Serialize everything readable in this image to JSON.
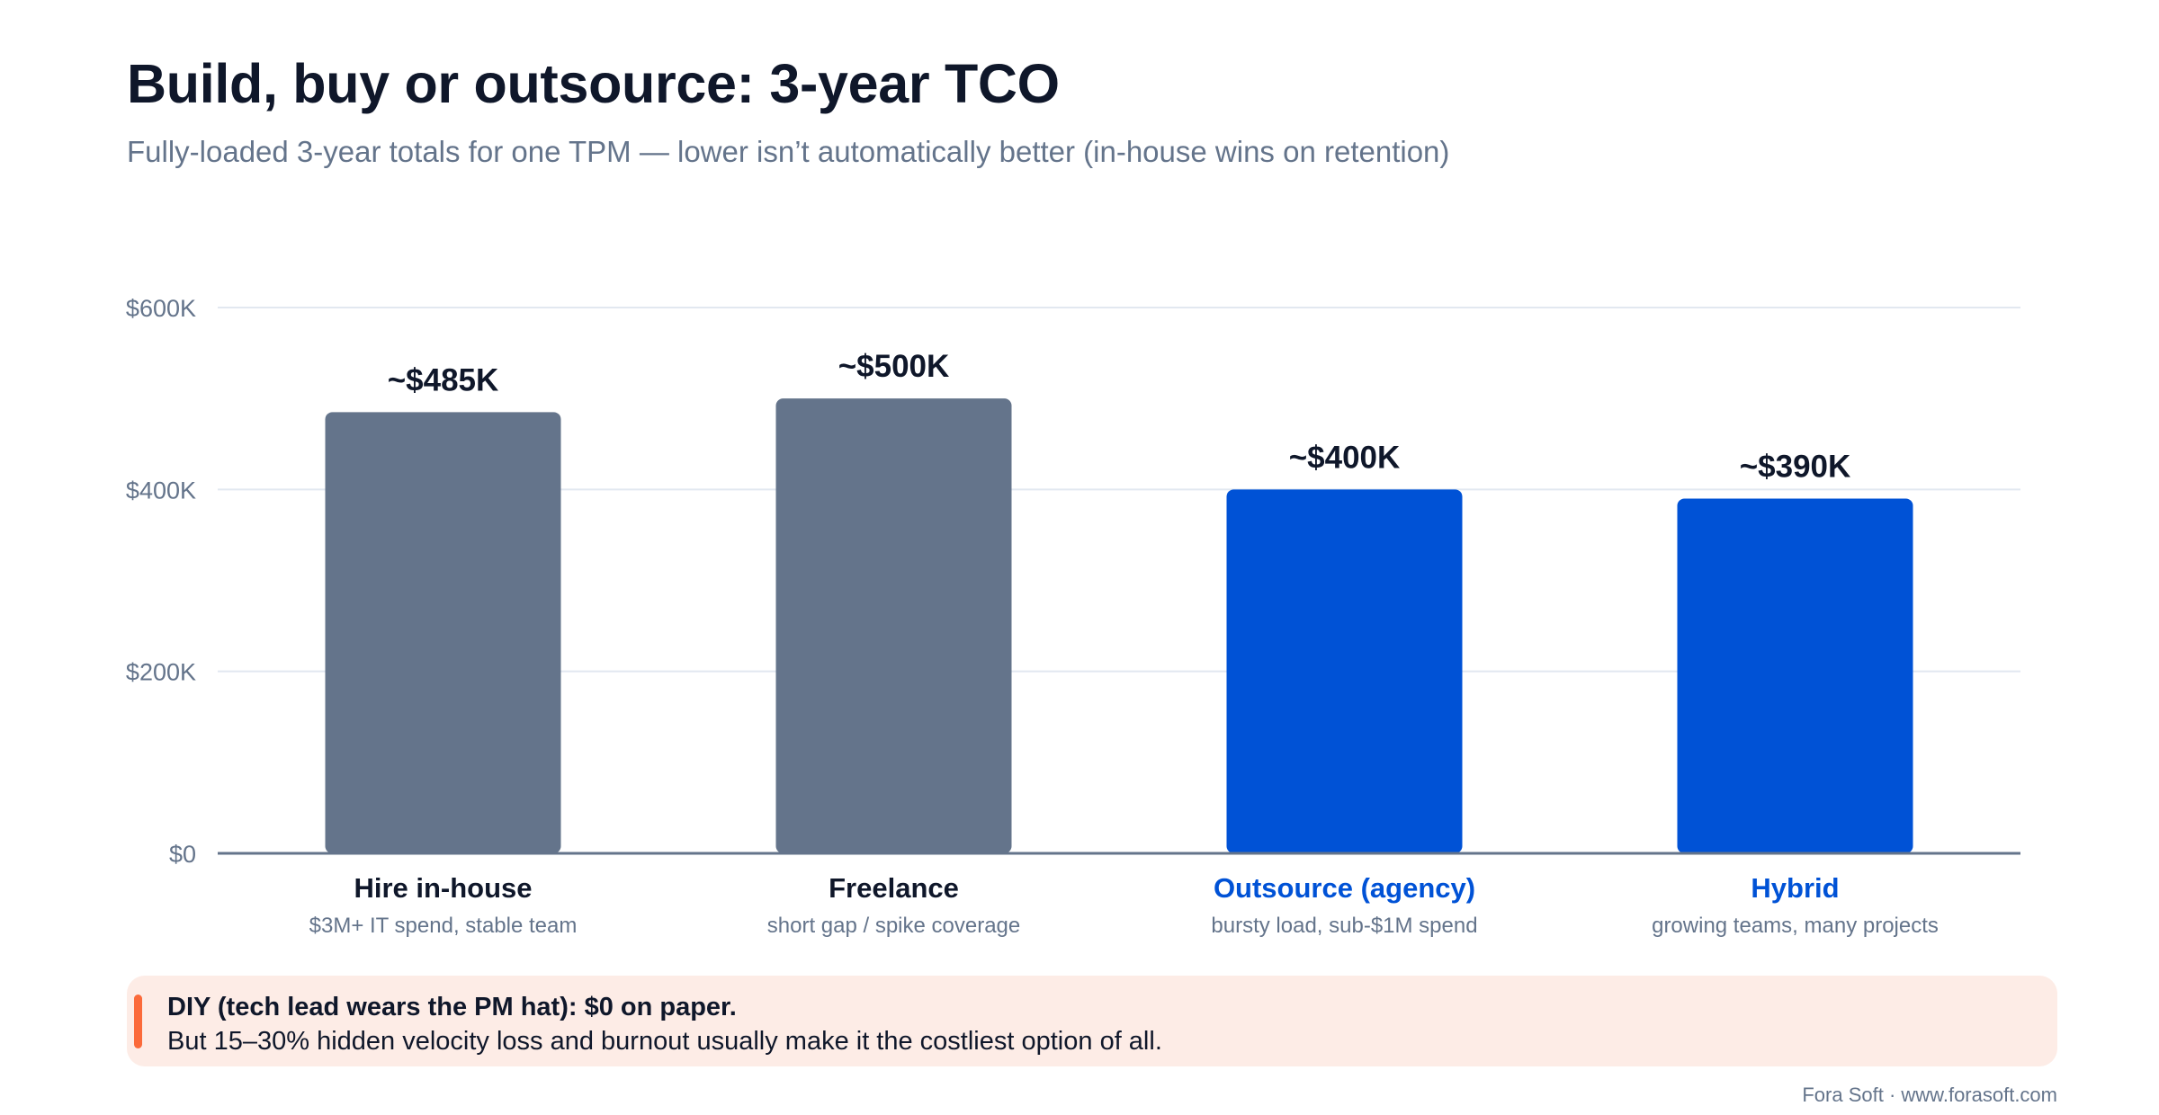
{
  "title": "Build, buy or outsource: 3-year TCO",
  "subtitle": "Fully-loaded 3-year totals for one TPM — lower isn’t automatically better (in-house wins on retention)",
  "chart_data": {
    "type": "bar",
    "categories": [
      "Hire in-house",
      "Freelance",
      "Outsource (agency)",
      "Hybrid"
    ],
    "sublabels": [
      "$3M+ IT spend, stable team",
      "short gap / spike coverage",
      "bursty load, sub-$1M spend",
      "growing teams, many projects"
    ],
    "values": [
      485000,
      500000,
      400000,
      390000
    ],
    "value_labels": [
      "~$485K",
      "~$500K",
      "~$400K",
      "~$390K"
    ],
    "colors": [
      "#64748b",
      "#64748b",
      "#0052d6",
      "#0052d6"
    ],
    "category_label_colors": [
      "#0f172a",
      "#0f172a",
      "#0052d6",
      "#0052d6"
    ],
    "ylim": [
      0,
      600000
    ],
    "yticks": [
      0,
      200000,
      400000,
      600000
    ],
    "ytick_labels": [
      "$0",
      "$200K",
      "$400K",
      "$600K"
    ],
    "grid": true,
    "legend": "none"
  },
  "callout": {
    "title": "DIY (tech lead wears the PM hat): $0 on paper.",
    "body": "But 15–30% hidden velocity loss and burnout usually make it the costliest option of all.",
    "accent_color": "#fb6a3a",
    "background_color": "#fdece6"
  },
  "footer": "Fora Soft · www.forasoft.com"
}
